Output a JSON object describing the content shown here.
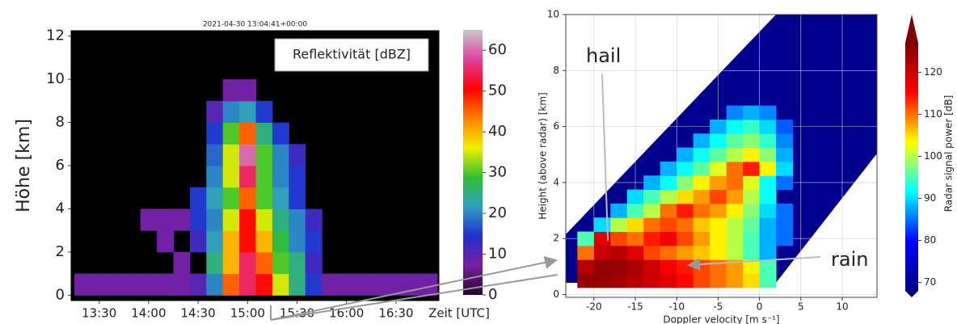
{
  "chart_data": [
    {
      "type": "heatmap",
      "title": "2021-04-30 13:04:41+00:00",
      "ylabel": "Höhe [km]",
      "xlabel": "Zeit [UTC]",
      "annotation": "Reflektivität [dBZ]",
      "x": [
        800,
        810,
        820,
        830,
        840,
        850,
        860,
        870,
        880,
        890,
        900,
        910,
        920,
        930,
        940,
        950,
        960,
        970,
        980,
        990,
        1000,
        1010
      ],
      "y": [
        0.5,
        1.5,
        2.5,
        3.5,
        4.5,
        5.5,
        6.5,
        7.5,
        8.5,
        9.5
      ],
      "z": [
        [
          8,
          8,
          8,
          8,
          8,
          8,
          8,
          10,
          20,
          45,
          55,
          50,
          35,
          25,
          15,
          8,
          8,
          8,
          8,
          8,
          8,
          8
        ],
        [
          null,
          null,
          null,
          null,
          null,
          null,
          8,
          null,
          25,
          40,
          55,
          45,
          30,
          25,
          12,
          null,
          null,
          null,
          null,
          null,
          null,
          null
        ],
        [
          null,
          null,
          null,
          null,
          null,
          8,
          null,
          12,
          22,
          40,
          50,
          40,
          28,
          20,
          15,
          null,
          null,
          null,
          null,
          null,
          null,
          null
        ],
        [
          null,
          null,
          null,
          null,
          8,
          8,
          8,
          15,
          20,
          35,
          50,
          35,
          25,
          20,
          12,
          null,
          null,
          null,
          null,
          null,
          null,
          null
        ],
        [
          null,
          null,
          null,
          null,
          null,
          null,
          null,
          15,
          22,
          30,
          45,
          30,
          22,
          15,
          null,
          null,
          null,
          null,
          null,
          null,
          null,
          null
        ],
        [
          null,
          null,
          null,
          null,
          null,
          null,
          null,
          null,
          20,
          35,
          55,
          30,
          20,
          15,
          null,
          null,
          null,
          null,
          null,
          null,
          null,
          null
        ],
        [
          null,
          null,
          null,
          null,
          null,
          null,
          null,
          null,
          18,
          35,
          60,
          30,
          20,
          12,
          null,
          null,
          null,
          null,
          null,
          null,
          null,
          null
        ],
        [
          null,
          null,
          null,
          null,
          null,
          null,
          null,
          null,
          15,
          30,
          45,
          25,
          15,
          null,
          null,
          null,
          null,
          null,
          null,
          null,
          null,
          null
        ],
        [
          null,
          null,
          null,
          null,
          null,
          null,
          null,
          null,
          10,
          20,
          22,
          15,
          null,
          null,
          null,
          null,
          null,
          null,
          null,
          null,
          null,
          null
        ],
        [
          null,
          null,
          null,
          null,
          null,
          null,
          null,
          null,
          null,
          8,
          8,
          null,
          null,
          null,
          null,
          null,
          null,
          null,
          null,
          null,
          null,
          null
        ]
      ],
      "xlim": [
        793,
        1016
      ],
      "ylim": [
        -0.25,
        12.25
      ],
      "xticks": [
        {
          "value": 810,
          "label": "13:30"
        },
        {
          "value": 840,
          "label": "14:00"
        },
        {
          "value": 870,
          "label": "14:30"
        },
        {
          "value": 900,
          "label": "15:00"
        },
        {
          "value": 930,
          "label": "15:30"
        },
        {
          "value": 960,
          "label": "16:00"
        },
        {
          "value": 990,
          "label": "16:30"
        }
      ],
      "yticks": [
        0,
        2,
        4,
        6,
        8,
        10,
        12
      ],
      "background": "#000000",
      "clim": [
        0,
        65
      ],
      "cticks": [
        0,
        10,
        20,
        30,
        40,
        50,
        60
      ],
      "colorscale": [
        "#2a0030",
        "#7a1fa0",
        "#2030d0",
        "#30a0c0",
        "#30c030",
        "#f0f000",
        "#ff8000",
        "#ff0000",
        "#e040a0",
        "#c8c8c8"
      ]
    },
    {
      "type": "heatmap",
      "xlabel": "Doppler velocity [m s⁻¹]",
      "ylabel": "Height (above radar) [km]",
      "clabel": "Radar signal power [dB]",
      "annotations": [
        "hail",
        "rain"
      ],
      "x": [
        -21,
        -19,
        -17,
        -15,
        -13,
        -11,
        -9,
        -7,
        -5,
        -3,
        -1,
        1,
        3,
        5
      ],
      "y": [
        0.5,
        1.0,
        1.5,
        2.0,
        2.5,
        3.0,
        3.5,
        4.0,
        4.5,
        5.0,
        5.5,
        6.0,
        6.5
      ],
      "z": [
        [
          125,
          125,
          124,
          122,
          120,
          118,
          115,
          112,
          110,
          108,
          105,
          95,
          null,
          null
        ],
        [
          122,
          125,
          125,
          123,
          120,
          116,
          114,
          112,
          110,
          108,
          104,
          95,
          null,
          null
        ],
        [
          110,
          120,
          122,
          118,
          112,
          110,
          108,
          106,
          104,
          100,
          95,
          88,
          null,
          null
        ],
        [
          95,
          118,
          112,
          110,
          114,
          116,
          112,
          108,
          104,
          100,
          95,
          88,
          85,
          null
        ],
        [
          null,
          90,
          100,
          105,
          110,
          112,
          110,
          106,
          104,
          100,
          96,
          88,
          85,
          null
        ],
        [
          null,
          null,
          88,
          95,
          100,
          110,
          114,
          110,
          108,
          104,
          98,
          90,
          85,
          null
        ],
        [
          null,
          null,
          null,
          90,
          95,
          100,
          105,
          108,
          112,
          108,
          100,
          92,
          null,
          null
        ],
        [
          null,
          null,
          null,
          null,
          88,
          92,
          98,
          104,
          108,
          110,
          102,
          92,
          85,
          null
        ],
        [
          null,
          null,
          null,
          null,
          null,
          88,
          92,
          96,
          102,
          110,
          114,
          104,
          90,
          null
        ],
        [
          null,
          null,
          null,
          null,
          null,
          null,
          88,
          92,
          96,
          100,
          104,
          98,
          88,
          null
        ],
        [
          null,
          null,
          null,
          null,
          null,
          null,
          null,
          88,
          92,
          96,
          98,
          94,
          86,
          null
        ],
        [
          null,
          null,
          null,
          null,
          null,
          null,
          null,
          null,
          88,
          92,
          94,
          90,
          84,
          null
        ],
        [
          null,
          null,
          null,
          null,
          null,
          null,
          null,
          null,
          null,
          86,
          88,
          86,
          null,
          null
        ]
      ],
      "xlim": [
        -23.4,
        14.2
      ],
      "ylim": [
        -0.1,
        10
      ],
      "xticks": [
        -20,
        -15,
        -10,
        -5,
        0,
        5,
        10
      ],
      "yticks": [
        0,
        2,
        4,
        6,
        8,
        10
      ],
      "grid": true,
      "background": "#ffffff",
      "clim": [
        68,
        127
      ],
      "cticks": [
        70,
        80,
        90,
        100,
        110,
        120
      ],
      "colorscale": [
        "#00007f",
        "#0000ff",
        "#00ffff",
        "#ffff00",
        "#ff0000",
        "#7f0000"
      ]
    }
  ]
}
